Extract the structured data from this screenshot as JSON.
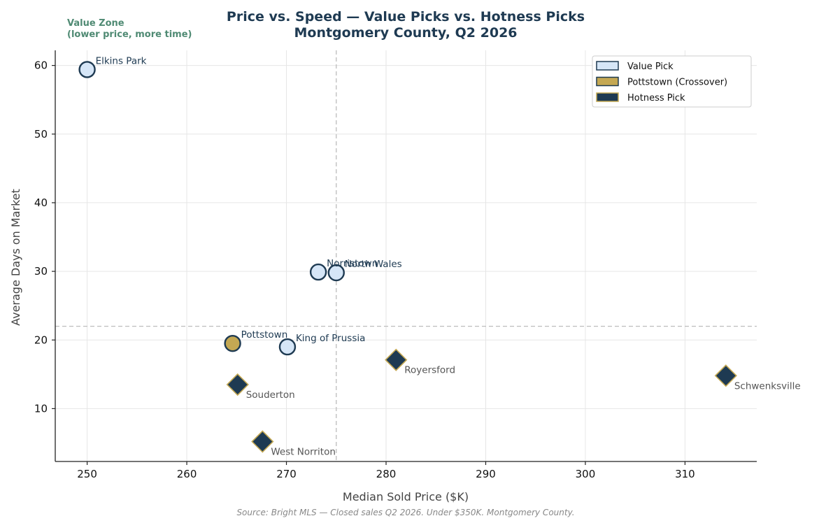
{
  "chart_data": {
    "type": "scatter",
    "title": "Price vs. Speed — Value Picks vs. Hotness Picks",
    "subtitle": "Montgomery County, Q2 2026",
    "xlabel": "Median Sold Price ($K)",
    "ylabel": "Average Days on Market",
    "xlim": [
      246.8,
      317.2
    ],
    "ylim": [
      2.3,
      62.2
    ],
    "xticks": [
      250,
      260,
      270,
      280,
      290,
      300,
      310
    ],
    "yticks": [
      10,
      20,
      30,
      40,
      50,
      60
    ],
    "grid": true,
    "reference_lines": {
      "x": 275,
      "y": 22
    },
    "zone_annotation": [
      "Value Zone",
      "(lower price, more time)"
    ],
    "source": "Source: Bright MLS — Closed sales Q2 2026. Under $350K. Montgomery County.",
    "legend": {
      "position": "top-right",
      "entries": [
        {
          "label": "Value Pick",
          "shape": "square",
          "fill": "#d6e6f7",
          "stroke": "#1e3a52"
        },
        {
          "label": "Pottstown (Crossover)",
          "shape": "square",
          "fill": "#c4a853",
          "stroke": "#1e3a52"
        },
        {
          "label": "Hotness Pick",
          "shape": "square",
          "fill": "#1e3a52",
          "stroke": "#c4a853"
        }
      ]
    },
    "series": [
      {
        "name": "Value Pick",
        "marker": "circle",
        "color": "#d6e6f7",
        "edge": "#1e3a52",
        "points": [
          {
            "label": "Elkins Park",
            "x": 250,
            "y": 59.4
          },
          {
            "label": "Norristown",
            "x": 273.2,
            "y": 29.9
          },
          {
            "label": "North Wales",
            "x": 275,
            "y": 29.8
          },
          {
            "label": "King of Prussia",
            "x": 270.1,
            "y": 19
          }
        ]
      },
      {
        "name": "Pottstown (Crossover)",
        "marker": "circle",
        "color": "#c4a853",
        "edge": "#1e3a52",
        "points": [
          {
            "label": "Pottstown",
            "x": 264.6,
            "y": 19.5
          }
        ]
      },
      {
        "name": "Hotness Pick",
        "marker": "diamond",
        "color": "#1e3a52",
        "edge": "#c4a853",
        "points": [
          {
            "label": "Royersford",
            "x": 281,
            "y": 17.1
          },
          {
            "label": "Schwenksville",
            "x": 314.1,
            "y": 14.8
          },
          {
            "label": "Souderton",
            "x": 265.1,
            "y": 13.5
          },
          {
            "label": "West Norriton",
            "x": 267.6,
            "y": 5.2
          }
        ]
      }
    ]
  }
}
